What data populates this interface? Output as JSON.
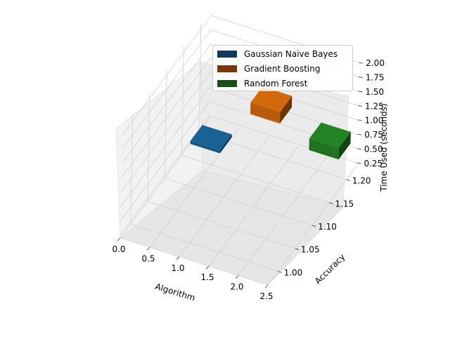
{
  "chart_data": {
    "type": "bar3d",
    "title": "",
    "xlabel": "Algorithm",
    "ylabel": "Accuracy",
    "zlabel": "Time Used (seconds)",
    "x_ticks": [
      "0.0",
      "0.5",
      "1.0",
      "1.5",
      "2.0",
      "2.5"
    ],
    "y_ticks": [
      "1.00",
      "1.05",
      "1.10",
      "1.15",
      "1.20"
    ],
    "z_ticks": [
      "0.25",
      "0.50",
      "0.75",
      "1.00",
      "1.25",
      "1.50",
      "1.75",
      "2.00"
    ],
    "xlim": [
      0,
      2.5
    ],
    "ylim": [
      0.97,
      1.23
    ],
    "zlim": [
      0.2,
      2.1
    ],
    "grid": true,
    "legend_position": "top-right",
    "series": [
      {
        "name": "Gaussian Naive Bayes",
        "x": 0,
        "accuracy": 1.0,
        "time": 0.25,
        "color": "#1f77b4"
      },
      {
        "name": "Gradient Boosting",
        "x": 1,
        "accuracy": 1.0,
        "time": 1.25,
        "color": "#ff7f0e"
      },
      {
        "name": "Random Forest",
        "x": 2,
        "accuracy": 1.0,
        "time": 0.95,
        "color": "#2ca02c"
      }
    ]
  }
}
